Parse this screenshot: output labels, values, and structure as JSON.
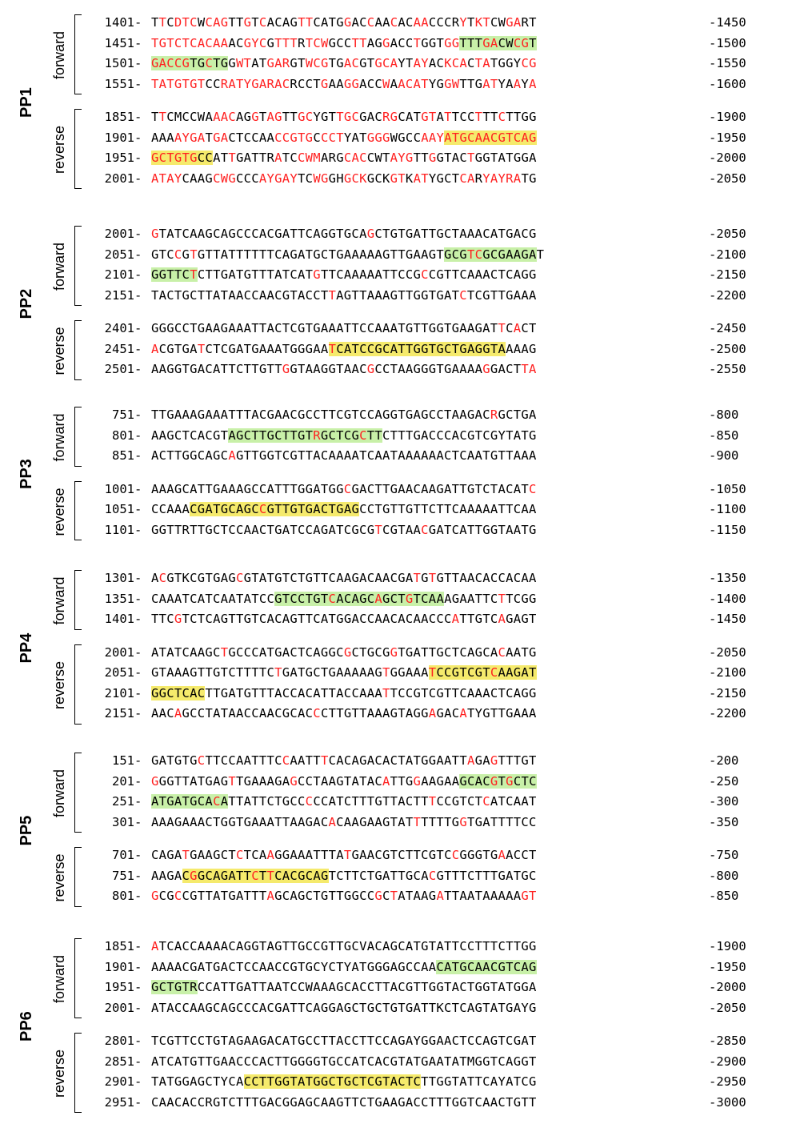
{
  "panels": [
    {
      "label": "PP1",
      "blocks": [
        {
          "direction": "forward",
          "rows": [
            {
              "start": "1401",
              "seq": "TTCDTCWCAGTTGTCACAGTTCATGGACCAACACAACCCRYTKTCWGART",
              "end": "-1450"
            },
            {
              "start": "1451",
              "seq": "TGTCTCACAAACGYCGTTTRTCWGCCTTAGGACCTGGTGGTTTGACWCGT",
              "end": "-1500"
            },
            {
              "start": "1501",
              "seq": "GACCGTGCTGGWTATGARGTWCGTGACGTGCAYTAYACKCACTATGGYCG",
              "end": "-1550"
            },
            {
              "start": "1551",
              "seq": "TATGTGTCCRATYGARACRCCTGAAGGACCWAACATYGGWTTGATYAAYA",
              "end": "-1600"
            }
          ]
        },
        {
          "direction": "reverse",
          "rows": [
            {
              "start": "1851",
              "seq": "TTCMCCWAAACAGGTAGTTGCYGTTGCGACRGCATGTATTCCTTTCTTGG",
              "end": "-1900"
            },
            {
              "start": "1901",
              "seq": "AAAAYGATGACTCCAACCGTGCCCTYATGGGWGCCAAYATGCAACGTCAG",
              "end": "-1950"
            },
            {
              "start": "1951",
              "seq": "GCTGTGCCATTGATTRATCCWMARGCACCWTAYGTTGGTACTGGTATGGA",
              "end": "-2000"
            },
            {
              "start": "2001",
              "seq": "ATAYCAAGCWGCCCAYGAYTCWGGHGCKGCKGTKATYGCTCARYAYRATG",
              "end": "-2050"
            }
          ]
        }
      ]
    },
    {
      "label": "PP2",
      "blocks": [
        {
          "direction": "forward",
          "rows": [
            {
              "start": "2001",
              "seq": "GTATCAAGCAGCCCACGATTCAGGTGCAGCTGTGATTGCTAAACATGACG",
              "end": "-2050"
            },
            {
              "start": "2051",
              "seq": "GTCCGTGTTATTTTTTCAGATGCTGAAAAAGTTGAAGTGCGTCGCGAAGAT",
              "end": "-2100"
            },
            {
              "start": "2101",
              "seq": "GGTTCTCTTGATGTTTATCATGTTCAAAAATTCCGCCGTTCAAACTCAGG",
              "end": "-2150"
            },
            {
              "start": "2151",
              "seq": "TACTGCTTATAACCAACGTACCTTAGTTAAAGTTGGTGATCTCGTTGAAA",
              "end": "-2200"
            }
          ]
        },
        {
          "direction": "reverse",
          "rows": [
            {
              "start": "2401",
              "seq": "GGGCCTGAAGAAATTACTCGTGAAATTCCAAATGTTGGTGAAGATTCACT",
              "end": "-2450"
            },
            {
              "start": "2451",
              "seq": "ACGTGATCTCGATGAAATGGGAATCATCCGCATTGGTGCTGAGGTAAAAG",
              "end": "-2500"
            },
            {
              "start": "2501",
              "seq": "AAGGTGACATTCTTGTTGGTAAGGTAACGCCTAAGGGTGAAAAGGACTTA",
              "end": "-2550"
            }
          ]
        }
      ]
    },
    {
      "label": "PP3",
      "blocks": [
        {
          "direction": "forward",
          "rows": [
            {
              "start": "751",
              "seq": "TTGAAAGAAATTTACGAACGCCTTCGTCCAGGTGAGCCTAAGACRGCTGA",
              "end": "-800"
            },
            {
              "start": "801",
              "seq": "AAGCTCACGTAGCTTGCTTGTRGCTCGCTTCTTTGACCCACGTCGYTATG",
              "end": "-850"
            },
            {
              "start": "851",
              "seq": "ACTTGGCAGCAGTTGGTCGTTACAAAATCAATAAAAAACTCAATGTTAAA",
              "end": "-900"
            }
          ]
        },
        {
          "direction": "reverse",
          "rows": [
            {
              "start": "1001",
              "seq": "AAAGCATTGAAAGCCATTTGGATGGCGACTTGAACAAGATTGTCTACATC",
              "end": "-1050"
            },
            {
              "start": "1051",
              "seq": "CCAAACGATGCAGCCGTTGTGACTGAGCCTGTTGTTCTTCAAAAATTCAA",
              "end": "-1100"
            },
            {
              "start": "1101",
              "seq": "GGTTRTTGCTCCAACTGATCCAGATCGCGTCGTAACGATCATTGGTAATG",
              "end": "-1150"
            }
          ]
        }
      ]
    },
    {
      "label": "PP4",
      "blocks": [
        {
          "direction": "forward",
          "rows": [
            {
              "start": "1301",
              "seq": "ACGTKCGTGAGCGTATGTCTGTTCAAGACAACGATGTGTTAACACCACAA",
              "end": "-1350"
            },
            {
              "start": "1351",
              "seq": "CAAATCATCAATATCCGTCCTGTCACAGCAGCTGTCAAAGAATTCTTCGG",
              "end": "-1400"
            },
            {
              "start": "1401",
              "seq": "TTCGTCTCAGTTGTCACAGTTCATGGACCAACACAACCCATTGTCAGAGT",
              "end": "-1450"
            }
          ]
        },
        {
          "direction": "reverse",
          "rows": [
            {
              "start": "2001",
              "seq": "ATATCAAGCTGCCCATGACTCAGGCGCTGCGGTGATTGCTCAGCACAATG",
              "end": "-2050"
            },
            {
              "start": "2051",
              "seq": "GTAAAGTTGTCTTTTCTGATGCTGAAAAAGTGGAAATCCGTCGTCAAGAT",
              "end": "-2100"
            },
            {
              "start": "2101",
              "seq": "GGCTCACTTGATGTTTACCACATTACCAAATTCCGTCGTTCAAACTCAGG",
              "end": "-2150"
            },
            {
              "start": "2151",
              "seq": "AACAGCCTATAACCAACGCACCCTTGTTAAAGTAGGAGACATYGTTGAAA",
              "end": "-2200"
            }
          ]
        }
      ]
    },
    {
      "label": "PP5",
      "blocks": [
        {
          "direction": "forward",
          "rows": [
            {
              "start": "151",
              "seq": "GATGTGCTTCCAATTTCCAATTTCACAGACACTATGGAATTAGAGTTTGT",
              "end": "-200"
            },
            {
              "start": "201",
              "seq": "GGGTTATGAGTTGAAAGAGCCTAAGTATACATTGGAAGAAGCACGTGCTC",
              "end": "-250"
            },
            {
              "start": "251",
              "seq": "ATGATGCACATTATTCTGCCCCCATCTTTGTTACTTTCCGTCTCATCAAT",
              "end": "-300"
            },
            {
              "start": "301",
              "seq": "AAAGAAACTGGTGAAATTAAGACACAAGAAGTATTTTTTGGTGATTTTCC",
              "end": "-350"
            }
          ]
        },
        {
          "direction": "reverse",
          "rows": [
            {
              "start": "701",
              "seq": "CAGATGAAGCTCTCAAGGAAATTTATGAACGTCTTCGTCCGGGTGAACCT",
              "end": "-750"
            },
            {
              "start": "751",
              "seq": "AAGACGGCAGATTCTTCACGCAGTCTTCTGATTGCACGTTTCTTTGATGC",
              "end": "-800"
            },
            {
              "start": "801",
              "seq": "GCGCCGTTATGATTTAGCAGCTGTTGGCCGCTATAAGATTAATAAAAAGT",
              "end": "-850"
            }
          ]
        }
      ]
    },
    {
      "label": "PP6",
      "blocks": [
        {
          "direction": "forward",
          "rows": [
            {
              "start": "1851",
              "seq": "ATCACCAAAACAGGTAGTTGCCGTTGCVACAGCATGTATTCCTTTCTTGG",
              "end": "-1900"
            },
            {
              "start": "1901",
              "seq": "AAAACGATGACTCCAACCGTGCYCTYATGGGAGCCAACATGCAACGTCAG",
              "end": "-1950"
            },
            {
              "start": "1951",
              "seq": "GCTGTRCCATTGATTAATCCWAAAGCACCTTACGTTGGTACTGGTATGGA",
              "end": "-2000"
            },
            {
              "start": "2001",
              "seq": "ATACCAAGCAGCCCACGATTCAGGAGCTGCTGTGATTKCTCAGTATGAYG",
              "end": "-2050"
            }
          ]
        },
        {
          "direction": "reverse",
          "rows": [
            {
              "start": "2801",
              "seq": "TCGTTCCTGTAGAAGACATGCCTTACCTTCCAGAYGGAACTCCAGTCGAT",
              "end": "-2850"
            },
            {
              "start": "2851",
              "seq": "ATCATGTTGAACCCACTTGGGGTGCCATCACGTATGAATATMGGTCAGGT",
              "end": "-2900"
            },
            {
              "start": "2901",
              "seq": "TATGGAGCTYCACCTTGGTATGGCTGCTCGTACTCTTGGTATTCAYATCG",
              "end": "-2950"
            },
            {
              "start": "2951",
              "seq": "CAACACCRGTCTTTGACGGAGCAAGTTCTGAAGACCTTTGGTCAACTGTT",
              "end": "-3000"
            }
          ]
        }
      ]
    }
  ],
  "styling": {
    "mismatch_color": "#ff2020",
    "forward_primer_highlight": "#c8f0a8",
    "reverse_primer_highlight": "#f5ea6c"
  }
}
